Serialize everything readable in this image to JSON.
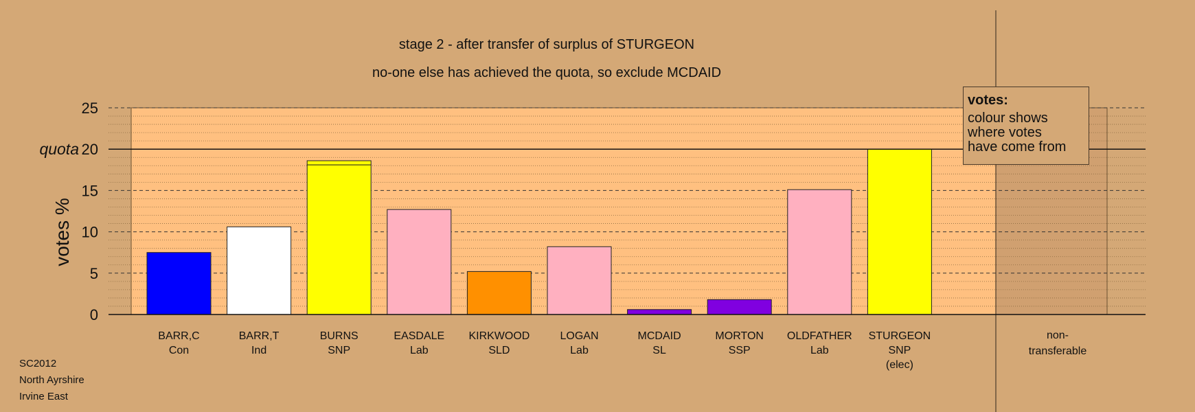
{
  "chart_data": {
    "type": "bar",
    "title": "stage 2 - after transfer of surplus of STURGEON",
    "subtitle": "no-one else has achieved the quota, so exclude MCDAID",
    "ylabel": "votes %",
    "ylim": [
      0,
      25
    ],
    "yticks": [
      0,
      5,
      10,
      15,
      20,
      25
    ],
    "quota": 20,
    "quota_label": "quota",
    "categories": [
      {
        "name": "BARR,C",
        "party": "Con",
        "note": ""
      },
      {
        "name": "BARR,T",
        "party": "Ind",
        "note": ""
      },
      {
        "name": "BURNS",
        "party": "SNP",
        "note": ""
      },
      {
        "name": "EASDALE",
        "party": "Lab",
        "note": ""
      },
      {
        "name": "KIRKWOOD",
        "party": "SLD",
        "note": ""
      },
      {
        "name": "LOGAN",
        "party": "Lab",
        "note": ""
      },
      {
        "name": "MCDAID",
        "party": "SL",
        "note": ""
      },
      {
        "name": "MORTON",
        "party": "SSP",
        "note": ""
      },
      {
        "name": "OLDFATHER",
        "party": "Lab",
        "note": ""
      },
      {
        "name": "STURGEON",
        "party": "SNP",
        "note": "(elec)"
      }
    ],
    "values": [
      7.5,
      10.6,
      18.6,
      12.7,
      5.2,
      8.2,
      0.6,
      1.8,
      15.1,
      20.0
    ],
    "segments": [
      [
        {
          "value": 7.5,
          "color": "#0000ff"
        }
      ],
      [
        {
          "value": 10.6,
          "color": "#ffffff"
        }
      ],
      [
        {
          "value": 18.1,
          "color": "#ffff00"
        },
        {
          "value": 0.5,
          "color": "#ffff00"
        }
      ],
      [
        {
          "value": 12.7,
          "color": "#ffb0c0"
        }
      ],
      [
        {
          "value": 5.2,
          "color": "#ff9000"
        }
      ],
      [
        {
          "value": 8.2,
          "color": "#ffb0c0"
        }
      ],
      [
        {
          "value": 0.6,
          "color": "#8000e0"
        }
      ],
      [
        {
          "value": 1.8,
          "color": "#8000e0"
        }
      ],
      [
        {
          "value": 15.1,
          "color": "#ffb0c0"
        }
      ],
      [
        {
          "value": 20.0,
          "color": "#ffff00"
        }
      ]
    ],
    "nontransferable_label": [
      "non-",
      "transferable"
    ],
    "nontransferable_value": 0,
    "grid": true,
    "colors": {
      "background": "#d4a876",
      "plot_area": "#ffc080",
      "nontransferable_area": "#d0a070"
    }
  },
  "legend": {
    "title": "votes:",
    "lines": [
      "colour shows",
      "where votes",
      "have come from"
    ]
  },
  "footer": {
    "line1": "SC2012",
    "line2": "North Ayrshire",
    "line3": "Irvine East"
  }
}
